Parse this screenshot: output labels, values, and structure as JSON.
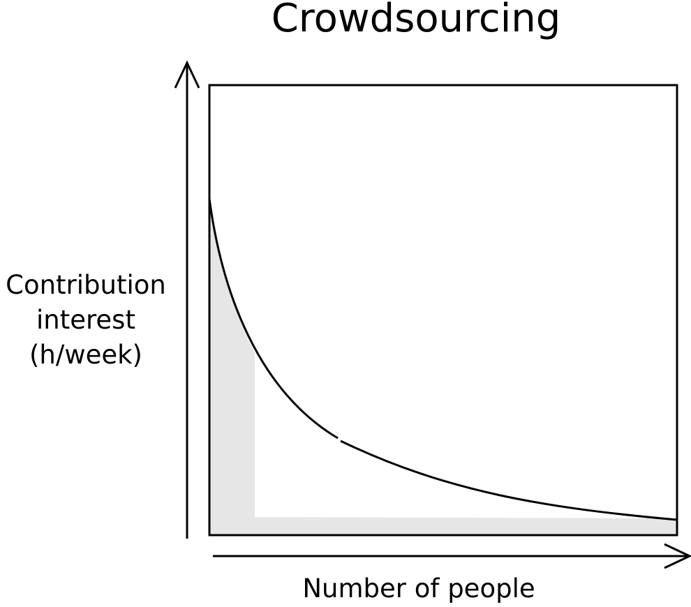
{
  "title": "Crowdsourcing",
  "y_axis": {
    "lines": [
      "Contribution",
      "interest",
      "(h/week)"
    ]
  },
  "x_axis": {
    "label": "Number of people"
  },
  "colors": {
    "line": "#000000",
    "shaded_area": "#e6e6e6",
    "background": "#ffffff"
  }
}
